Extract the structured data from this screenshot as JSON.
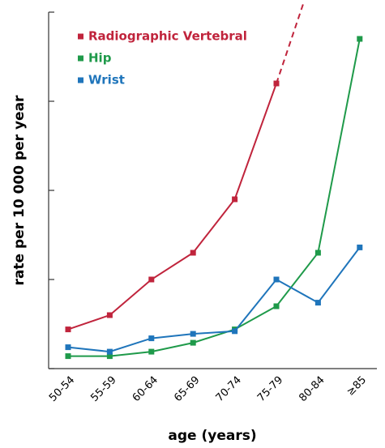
{
  "chart_data": {
    "type": "line",
    "y_label": "rate per 10 000 per year",
    "x_label": "age (years)",
    "categories": [
      "50-54",
      "55-59",
      "60-64",
      "65-69",
      "70-74",
      "75-79",
      "80-84",
      "≥85"
    ],
    "series": [
      {
        "name": "Radiographic Vertebral",
        "color": "#c0243c",
        "values": [
          22,
          30,
          50,
          65,
          95,
          160,
          null,
          null
        ]
      },
      {
        "name": "Hip",
        "color": "#1f9a4a",
        "values": [
          7,
          7,
          9.5,
          14.5,
          22,
          35,
          65,
          185
        ]
      },
      {
        "name": "Wrist",
        "color": "#1f75bb",
        "values": [
          12,
          9.5,
          17,
          19.5,
          21,
          50,
          37,
          68
        ]
      }
    ],
    "ylim": [
      0,
      200
    ],
    "yticks": [
      0,
      50,
      100,
      150,
      200
    ],
    "legend": "upper left"
  }
}
